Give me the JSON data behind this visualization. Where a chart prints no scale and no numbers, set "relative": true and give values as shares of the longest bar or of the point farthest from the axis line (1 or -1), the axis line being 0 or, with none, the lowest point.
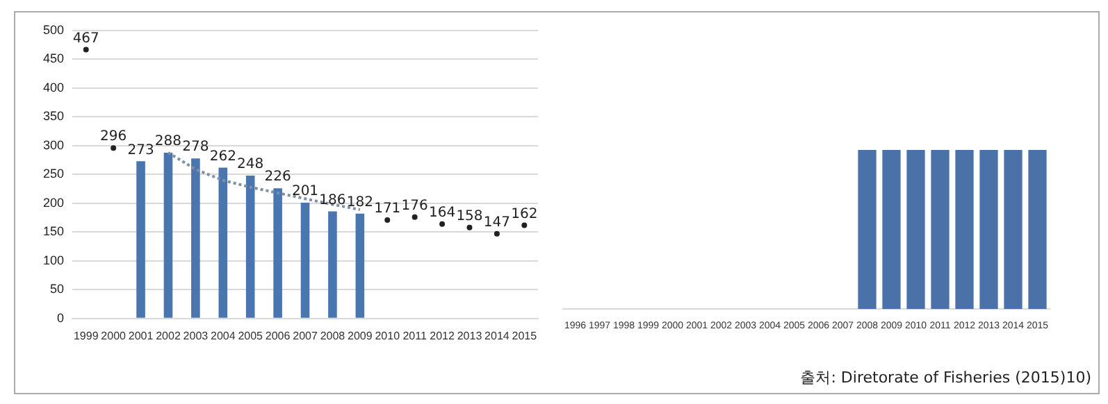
{
  "chart_data": [
    {
      "type": "bar",
      "categories": [
        "1999",
        "2000",
        "2001",
        "2002",
        "2003",
        "2004",
        "2005",
        "2006",
        "2007",
        "2008",
        "2009",
        "2010",
        "2011",
        "2012",
        "2013",
        "2014",
        "2015"
      ],
      "ylim": [
        0,
        500
      ],
      "yticks": [
        0,
        50,
        100,
        150,
        200,
        250,
        300,
        350,
        400,
        450,
        500
      ],
      "grid": "y",
      "legend": false,
      "series": [
        {
          "color": "#4a76b0",
          "values": [
            null,
            null,
            273,
            288,
            278,
            262,
            248,
            226,
            201,
            186,
            182,
            null,
            null,
            null,
            null,
            null,
            null
          ],
          "value_labels": [
            null,
            null,
            "273",
            "288",
            "278",
            "262",
            "248",
            "226",
            "201",
            "186",
            "182",
            null,
            null,
            null,
            null,
            null,
            null
          ]
        },
        {
          "type": "line",
          "color": "#7f8fa6",
          "line_style": "dotted",
          "marker": "none",
          "values": [
            null,
            null,
            null,
            288,
            259,
            240,
            228,
            218,
            208,
            198,
            189,
            null,
            null,
            null,
            null,
            null,
            null
          ]
        },
        {
          "type": "scatter",
          "color": "#222222",
          "marker": "circle",
          "values": [
            467,
            296,
            null,
            null,
            null,
            null,
            null,
            null,
            null,
            null,
            null,
            171,
            176,
            164,
            158,
            147,
            162
          ],
          "value_labels": [
            "467",
            "296",
            null,
            null,
            null,
            null,
            null,
            null,
            null,
            null,
            null,
            "171",
            "176",
            "164",
            "158",
            "147",
            "162"
          ]
        }
      ]
    },
    {
      "type": "bar",
      "relative": true,
      "legend": false,
      "categories": [
        "1996",
        "1997",
        "1998",
        "1999",
        "2000",
        "2001",
        "2002",
        "2003",
        "2004",
        "2005",
        "2006",
        "2007",
        "2008",
        "2009",
        "2010",
        "2011",
        "2012",
        "2013",
        "2014",
        "2015"
      ],
      "series": [
        {
          "color": "#4a72a8",
          "values": [
            null,
            null,
            null,
            null,
            null,
            null,
            null,
            null,
            null,
            null,
            null,
            null,
            1,
            1,
            1,
            1,
            1,
            1,
            1,
            1
          ]
        }
      ],
      "annotations": [
        "출처: Diretorate of Fisheries (2015)10)"
      ]
    }
  ]
}
